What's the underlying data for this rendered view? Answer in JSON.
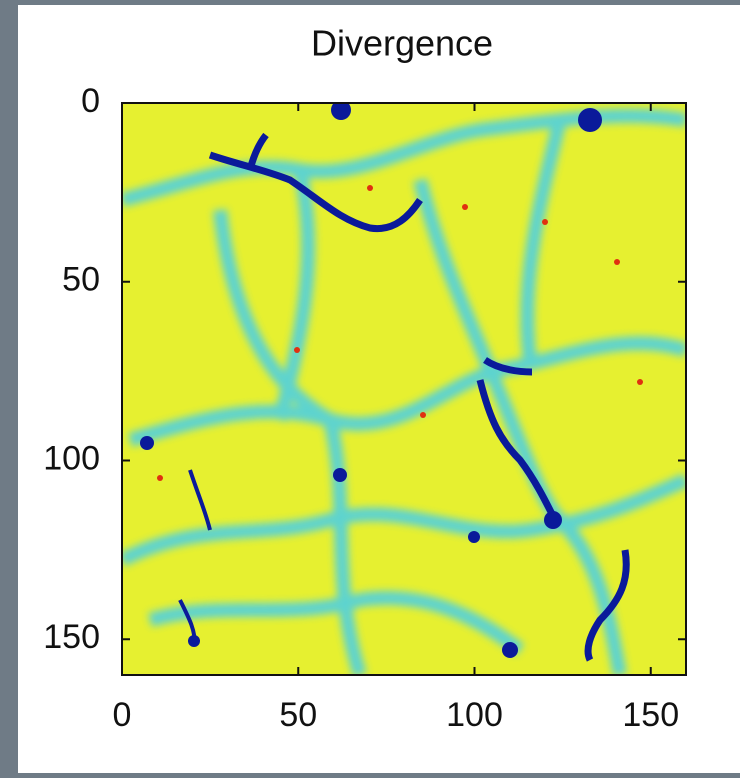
{
  "chart_data": {
    "type": "heatmap",
    "title": "Divergence",
    "xlim": [
      0,
      160
    ],
    "ylim": [
      0,
      160
    ],
    "y_inverted": true,
    "xticks": [
      0,
      50,
      100,
      150
    ],
    "yticks": [
      0,
      50,
      100,
      150
    ]
  }
}
